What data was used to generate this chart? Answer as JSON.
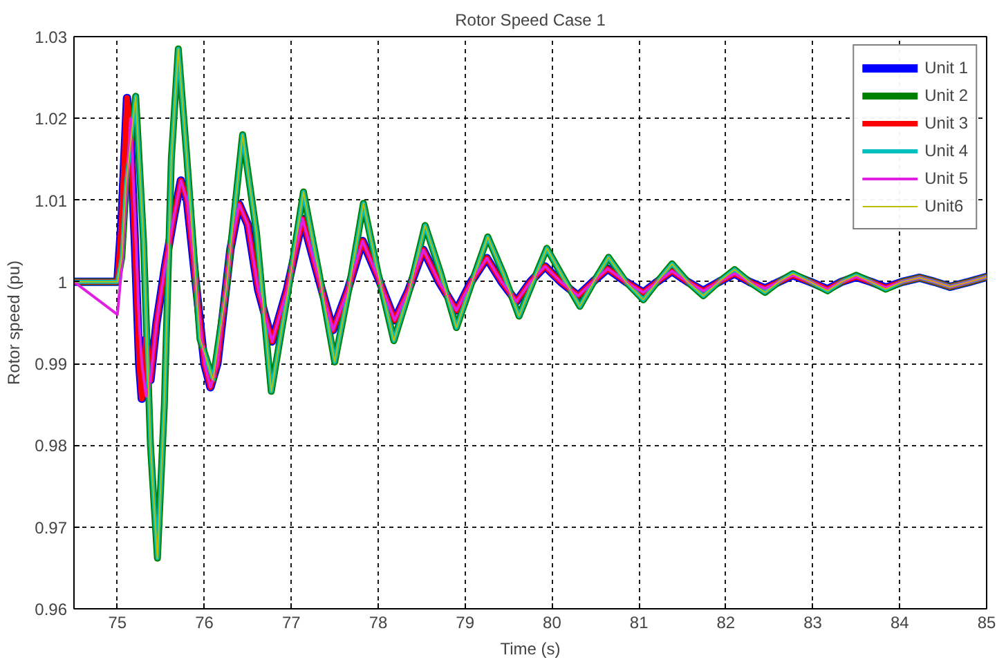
{
  "chart_data": {
    "type": "line",
    "title": "Rotor Speed Case 1",
    "xlabel": "Time (s)",
    "ylabel": "Rotor speed (pu)",
    "xlim": [
      74.5,
      85
    ],
    "ylim": [
      0.96,
      1.03
    ],
    "xticks": [
      75,
      76,
      77,
      78,
      79,
      80,
      81,
      82,
      83,
      84,
      85
    ],
    "yticks": [
      0.96,
      0.97,
      0.98,
      0.99,
      1,
      1.01,
      1.02,
      1.03
    ],
    "grid": true,
    "legend": "top right",
    "line_style": "solid",
    "marker": "none",
    "x": [
      74.5,
      75.0,
      75.05,
      75.11,
      75.15,
      75.2,
      75.25,
      75.28,
      75.33,
      75.38,
      75.45,
      75.55,
      75.65,
      75.73,
      75.8,
      75.9,
      76.0,
      76.07,
      76.15,
      76.3,
      76.4,
      76.5,
      76.62,
      76.78,
      76.95,
      77.13,
      77.3,
      77.48,
      77.65,
      77.82,
      78.0,
      78.19,
      78.35,
      78.52,
      78.7,
      78.9,
      79.07,
      79.25,
      79.42,
      79.59,
      79.75,
      79.92,
      80.1,
      80.3,
      80.47,
      80.64,
      80.85,
      81.05,
      81.21,
      81.38,
      81.56,
      81.74,
      81.92,
      82.1,
      82.27,
      82.45,
      82.61,
      82.77,
      82.97,
      83.17,
      83.33,
      83.5,
      83.67,
      83.84,
      84.03,
      84.23,
      84.4,
      84.58,
      84.8,
      85.0
    ],
    "series": [
      {
        "name": "Unit 1",
        "color": "#0000ff",
        "values": [
          1.0,
          1.0,
          1.008,
          1.0225,
          1.018,
          1.005,
          0.99,
          0.9857,
          0.993,
          0.988,
          0.995,
          1.002,
          1.008,
          1.0124,
          1.01,
          1.0,
          0.99,
          0.9871,
          0.99,
          1.004,
          1.0095,
          1.007,
          0.999,
          0.9927,
          0.999,
          1.0077,
          1.001,
          0.9941,
          0.999,
          1.005,
          1.0005,
          0.9953,
          0.999,
          1.0039,
          1.0,
          0.9965,
          1.0,
          1.0029,
          1.0,
          0.9976,
          1.0,
          1.0019,
          1.0,
          0.9983,
          1.0,
          1.0016,
          1.0,
          0.9987,
          1.0,
          1.0013,
          1.0,
          0.9989,
          1.0,
          1.001,
          1.0,
          0.9992,
          1.0,
          1.0008,
          1.0,
          0.9991,
          1.0,
          1.0006,
          1.0,
          0.9993,
          1.0,
          1.0005,
          1.0,
          0.9994,
          1.0,
          1.0006
        ]
      },
      {
        "name": "Unit 2",
        "color": "#008000",
        "x": [
          74.5,
          75.0,
          75.05,
          75.1,
          75.21,
          75.3,
          75.38,
          75.46,
          75.54,
          75.62,
          75.7,
          75.8,
          75.95,
          76.1,
          76.25,
          76.44,
          76.6,
          76.77,
          76.95,
          77.14,
          77.32,
          77.5,
          77.66,
          77.83,
          78.0,
          78.18,
          78.36,
          78.54,
          78.72,
          78.9,
          79.08,
          79.26,
          79.44,
          79.62,
          79.78,
          79.94,
          80.13,
          80.32,
          80.48,
          80.65,
          80.85,
          81.05,
          81.21,
          81.38,
          81.56,
          81.74,
          81.92,
          82.1,
          82.27,
          82.45,
          82.61,
          82.77,
          82.97,
          83.17,
          83.33,
          83.5,
          83.67,
          83.84,
          84.03,
          84.23,
          84.4,
          84.58,
          84.8,
          85.0
        ],
        "values": [
          1.0,
          1.0,
          1.003,
          1.012,
          1.0227,
          1.005,
          0.98,
          0.9662,
          0.985,
          1.015,
          1.0285,
          1.015,
          0.993,
          0.988,
          0.999,
          1.018,
          1.006,
          0.9866,
          0.998,
          1.011,
          1.001,
          0.9902,
          0.999,
          1.0096,
          1.001,
          0.9928,
          0.999,
          1.0069,
          1.001,
          0.9944,
          1.0,
          1.0055,
          1.001,
          0.9958,
          1.0,
          1.0041,
          1.0005,
          0.997,
          1.0,
          1.003,
          1.0,
          0.9978,
          1.0,
          1.0022,
          1.0,
          0.9983,
          1.0,
          1.0015,
          1.0,
          0.9987,
          1.0,
          1.001,
          1.0,
          0.9989,
          1.0,
          1.0008,
          1.0,
          0.9991,
          1.0,
          1.0005,
          1.0,
          0.9994,
          1.0,
          1.0006
        ]
      },
      {
        "name": "Unit 3",
        "color": "#ff0000",
        "values": [
          1.0,
          1.0,
          1.008,
          1.0225,
          1.018,
          1.005,
          0.99,
          0.9857,
          0.993,
          0.988,
          0.995,
          1.002,
          1.008,
          1.0124,
          1.01,
          1.0,
          0.99,
          0.9871,
          0.99,
          1.004,
          1.0095,
          1.007,
          0.999,
          0.9927,
          0.999,
          1.0077,
          1.001,
          0.9941,
          0.999,
          1.005,
          1.0005,
          0.9953,
          0.999,
          1.0039,
          1.0,
          0.9965,
          1.0,
          1.0029,
          1.0,
          0.9976,
          1.0,
          1.0019,
          1.0,
          0.9983,
          1.0,
          1.0016,
          1.0,
          0.9987,
          1.0,
          1.0013,
          1.0,
          0.9989,
          1.0,
          1.001,
          1.0,
          0.9992,
          1.0,
          1.0008,
          1.0,
          0.9991,
          1.0,
          1.0006,
          1.0,
          0.9993,
          1.0,
          1.0005,
          1.0,
          0.9994,
          1.0,
          1.0006
        ]
      },
      {
        "name": "Unit 4",
        "color": "#00bfbf",
        "x": [
          74.5,
          75.0,
          75.05,
          75.1,
          75.21,
          75.3,
          75.38,
          75.46,
          75.54,
          75.62,
          75.7,
          75.8,
          75.95,
          76.1,
          76.25,
          76.44,
          76.6,
          76.77,
          76.95,
          77.14,
          77.32,
          77.5,
          77.66,
          77.83,
          78.0,
          78.18,
          78.36,
          78.54,
          78.72,
          78.9,
          79.08,
          79.26,
          79.44,
          79.62,
          79.78,
          79.94,
          80.13,
          80.32,
          80.48,
          80.65,
          80.85,
          81.05,
          81.21,
          81.38,
          81.56,
          81.74,
          81.92,
          82.1,
          82.27,
          82.45,
          82.61,
          82.77,
          82.97,
          83.17,
          83.33,
          83.5,
          83.67,
          83.84,
          84.03,
          84.23,
          84.4,
          84.58,
          84.8,
          85.0
        ],
        "values": [
          1.0,
          1.0,
          1.003,
          1.012,
          1.0227,
          1.005,
          0.98,
          0.9662,
          0.985,
          1.015,
          1.0285,
          1.015,
          0.993,
          0.988,
          0.999,
          1.018,
          1.006,
          0.9866,
          0.998,
          1.011,
          1.001,
          0.9902,
          0.999,
          1.0096,
          1.001,
          0.9928,
          0.999,
          1.0069,
          1.001,
          0.9944,
          1.0,
          1.0055,
          1.001,
          0.9958,
          1.0,
          1.0041,
          1.0005,
          0.997,
          1.0,
          1.003,
          1.0,
          0.9978,
          1.0,
          1.0022,
          1.0,
          0.9983,
          1.0,
          1.0015,
          1.0,
          0.9987,
          1.0,
          1.001,
          1.0,
          0.9989,
          1.0,
          1.0008,
          1.0,
          0.9991,
          1.0,
          1.0005,
          1.0,
          0.9994,
          1.0,
          1.0006
        ]
      },
      {
        "name": "Unit 5",
        "color": "#e020e0",
        "values": [
          1.0,
          0.996,
          1.002,
          1.012,
          1.02,
          1.008,
          0.995,
          0.99,
          0.986,
          0.988,
          0.995,
          1.002,
          1.008,
          1.0124,
          1.01,
          1.0,
          0.99,
          0.9871,
          0.99,
          1.004,
          1.0095,
          1.007,
          0.999,
          0.9927,
          0.999,
          1.0077,
          1.001,
          0.9941,
          0.999,
          1.005,
          1.0005,
          0.9953,
          0.999,
          1.0039,
          1.0,
          0.9965,
          1.0,
          1.0029,
          1.0,
          0.9976,
          1.0,
          1.0019,
          1.0,
          0.9983,
          1.0,
          1.0016,
          1.0,
          0.9987,
          1.0,
          1.0013,
          1.0,
          0.9989,
          1.0,
          1.001,
          1.0,
          0.9992,
          1.0,
          1.0008,
          1.0,
          0.9991,
          1.0,
          1.0006,
          1.0,
          0.9993,
          1.0,
          1.0005,
          1.0,
          0.9994,
          1.0,
          1.0006
        ]
      },
      {
        "name": "Unit6",
        "color": "#bfbf00",
        "x": [
          74.5,
          75.0,
          75.05,
          75.1,
          75.21,
          75.3,
          75.38,
          75.46,
          75.54,
          75.62,
          75.7,
          75.8,
          75.95,
          76.1,
          76.25,
          76.44,
          76.6,
          76.77,
          76.95,
          77.14,
          77.32,
          77.5,
          77.66,
          77.83,
          78.0,
          78.18,
          78.36,
          78.54,
          78.72,
          78.9,
          79.08,
          79.26,
          79.44,
          79.62,
          79.78,
          79.94,
          80.13,
          80.32,
          80.48,
          80.65,
          80.85,
          81.05,
          81.21,
          81.38,
          81.56,
          81.74,
          81.92,
          82.1,
          82.27,
          82.45,
          82.61,
          82.77,
          82.97,
          83.17,
          83.33,
          83.5,
          83.67,
          83.84,
          84.03,
          84.23,
          84.4,
          84.58,
          84.8,
          85.0
        ],
        "values": [
          1.0,
          1.0,
          1.003,
          1.012,
          1.0227,
          1.005,
          0.98,
          0.9662,
          0.985,
          1.015,
          1.0285,
          1.015,
          0.993,
          0.988,
          0.999,
          1.018,
          1.006,
          0.9866,
          0.998,
          1.011,
          1.001,
          0.9902,
          0.999,
          1.0096,
          1.001,
          0.9928,
          0.999,
          1.0069,
          1.001,
          0.9944,
          1.0,
          1.0055,
          1.001,
          0.9958,
          1.0,
          1.0041,
          1.0005,
          0.997,
          1.0,
          1.003,
          1.0,
          0.9978,
          1.0,
          1.0022,
          1.0,
          0.9983,
          1.0,
          1.0015,
          1.0,
          0.9987,
          1.0,
          1.001,
          1.0,
          0.9989,
          1.0,
          1.0008,
          1.0,
          0.9991,
          1.0,
          1.0005,
          1.0,
          0.9994,
          1.0,
          1.0006
        ]
      }
    ]
  }
}
